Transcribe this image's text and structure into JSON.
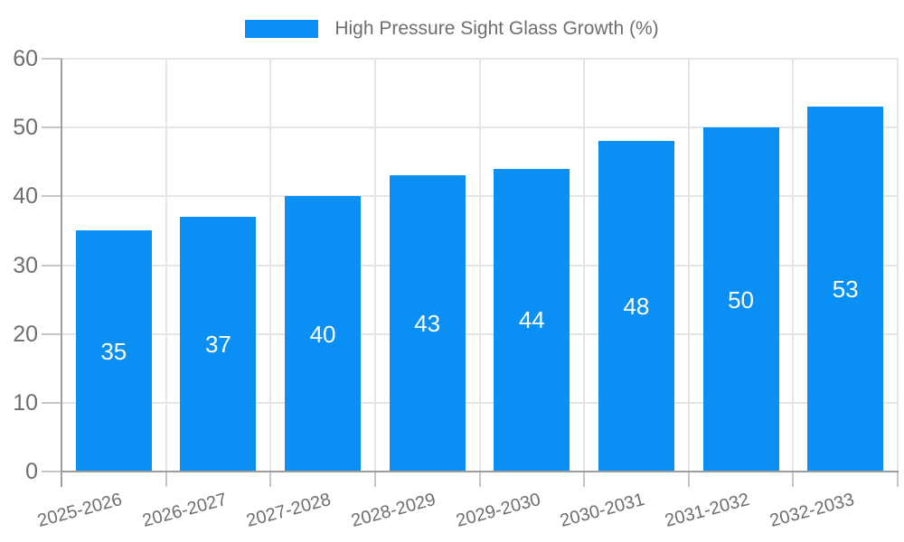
{
  "chart_data": {
    "type": "bar",
    "title": "",
    "legend": {
      "position": "top",
      "label": "High Pressure Sight Glass Growth (%)"
    },
    "categories": [
      "2025-2026",
      "2026-2027",
      "2027-2028",
      "2028-2029",
      "2029-2030",
      "2030-2031",
      "2031-2032",
      "2032-2033"
    ],
    "values": [
      35,
      37,
      40,
      43,
      44,
      48,
      50,
      53
    ],
    "value_labels": [
      "35",
      "37",
      "40",
      "43",
      "44",
      "48",
      "50",
      "53"
    ],
    "value_label_placement": "inside-center",
    "xlabel": "",
    "ylabel": "",
    "ylim": [
      0,
      60
    ],
    "yticks": [
      0,
      10,
      20,
      30,
      40,
      50,
      60
    ],
    "grid": "horizontal and vertical gridlines on",
    "colors": {
      "bar": "#0a8ff5",
      "value_label": "#ffffff",
      "gridline": "#e5e5e5",
      "axis_line": "#9e9e9e",
      "tick_mark": "#c6c6c6",
      "tick_text": "#6e6e6e",
      "legend_text": "#6e6e6e",
      "background": "#ffffff"
    }
  }
}
